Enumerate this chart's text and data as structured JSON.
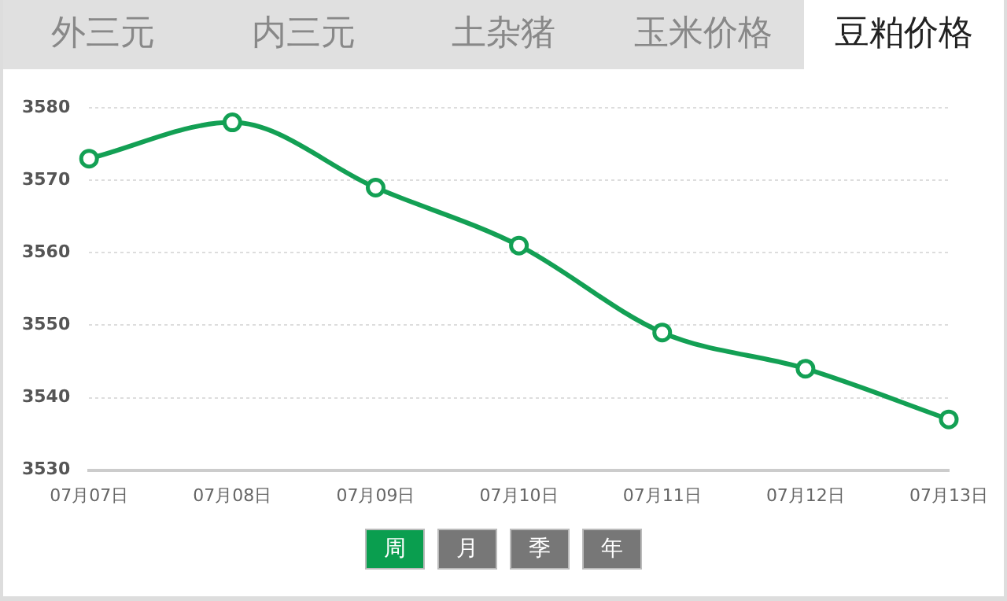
{
  "chart_data": {
    "type": "line",
    "title": "豆粕价格",
    "annotations": [
      "外三元",
      "内三元",
      "土杂猪",
      "玉米价格",
      "周",
      "月",
      "季",
      "年"
    ],
    "categories": [
      "07月07日",
      "07月08日",
      "07月09日",
      "07月10日",
      "07月11日",
      "07月12日",
      "07月13日"
    ],
    "series": [
      {
        "color": "#13a054",
        "values": [
          3573,
          3578,
          3569,
          3561,
          3549,
          3544,
          3537
        ]
      }
    ],
    "ylim": [
      3530,
      3580
    ],
    "yticks": [
      3530,
      3540,
      3550,
      3560,
      3570,
      3580
    ],
    "grid": "y",
    "legend": false,
    "marker": "circle",
    "line_style": "solid"
  }
}
